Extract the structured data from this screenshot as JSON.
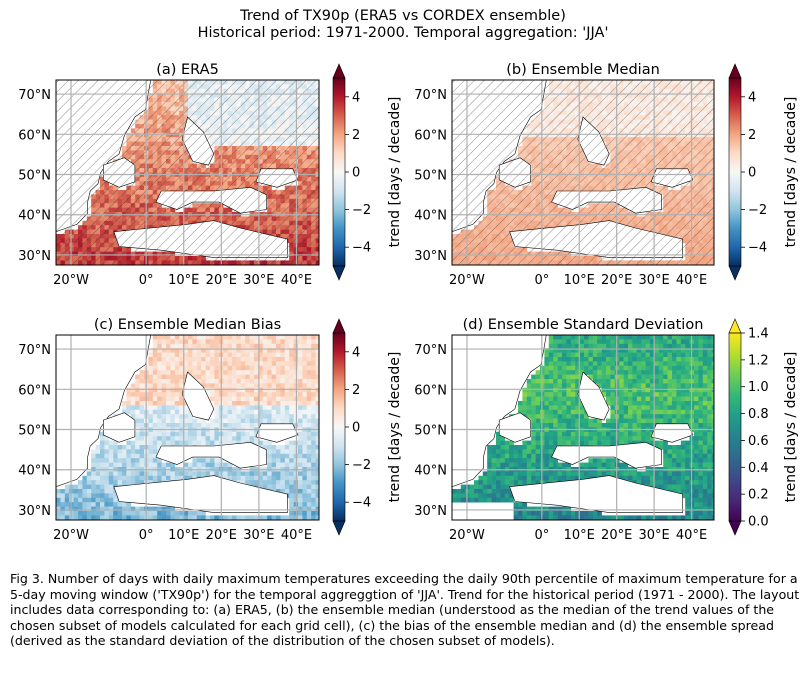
{
  "figure": {
    "title_line1": "Trend of TX90p (ERA5 vs CORDEX ensemble)",
    "title_line2": "Historical period: 1971-2000. Temporal aggregation: 'JJA'",
    "caption": "Fig 3. Number of days with daily maximum temperatures exceeding the daily 90th percentile of maximum temperature for a 5-day moving window ('TX90p') for the temporal aggreggtion of 'JJA'. Trend for the historical period (1971 - 2000). The layout includes data corresponding to: (a) ERA5, (b) the ensemble median (understood as the median of the trend values of the chosen subset of models calculated for each grid cell), (c) the bias of the ensemble median and (d) the ensemble spread (derived as the standard deviation of the distribution of the chosen subset of models)."
  },
  "colors": {
    "rdbu": [
      "#053061",
      "#2166ac",
      "#4393c3",
      "#92c5de",
      "#d1e5f0",
      "#f7f7f7",
      "#fddbc7",
      "#f4a582",
      "#d6604d",
      "#b2182b",
      "#67001f"
    ],
    "viridis": [
      "#440154",
      "#482878",
      "#3e4989",
      "#31688e",
      "#26828e",
      "#1f9e89",
      "#35b779",
      "#6ece58",
      "#b5de2b",
      "#fde725"
    ],
    "grid": "#b0b0b0",
    "coast": "#000000"
  },
  "chart_data": [
    {
      "type": "heatmap",
      "title": "(a) ERA5",
      "lat_ticks": [
        "70°N",
        "60°N",
        "50°N",
        "40°N",
        "30°N"
      ],
      "lon_ticks": [
        "20°W",
        "0°",
        "10°E",
        "20°E",
        "30°E",
        "40°E"
      ],
      "colorbar": {
        "label": "trend [days / decade]",
        "ticks": [
          "4",
          "2",
          "0",
          "−2",
          "−4"
        ],
        "range": [
          -5,
          5
        ],
        "cmap": "RdBu_r",
        "extend": "both"
      },
      "hatched": true
    },
    {
      "type": "heatmap",
      "title": "(b) Ensemble Median",
      "lat_ticks": [
        "70°N",
        "60°N",
        "50°N",
        "40°N",
        "30°N"
      ],
      "lon_ticks": [
        "20°W",
        "0°",
        "10°E",
        "20°E",
        "30°E",
        "40°E"
      ],
      "colorbar": {
        "label": "trend [days / decade]",
        "ticks": [
          "4",
          "2",
          "0",
          "−2",
          "−4"
        ],
        "range": [
          -5,
          5
        ],
        "cmap": "RdBu_r",
        "extend": "both"
      },
      "hatched": true
    },
    {
      "type": "heatmap",
      "title": "(c) Ensemble Median Bias",
      "lat_ticks": [
        "70°N",
        "60°N",
        "50°N",
        "40°N",
        "30°N"
      ],
      "lon_ticks": [
        "20°W",
        "0°",
        "10°E",
        "20°E",
        "30°E",
        "40°E"
      ],
      "colorbar": {
        "label": "trend [days / decade]",
        "ticks": [
          "4",
          "2",
          "0",
          "−2",
          "−4"
        ],
        "range": [
          -5,
          5
        ],
        "cmap": "RdBu_r",
        "extend": "both"
      },
      "hatched": false
    },
    {
      "type": "heatmap",
      "title": "(d) Ensemble Standard Deviation",
      "lat_ticks": [
        "70°N",
        "60°N",
        "50°N",
        "40°N",
        "30°N"
      ],
      "lon_ticks": [
        "20°W",
        "0°",
        "10°E",
        "20°E",
        "30°E",
        "40°E"
      ],
      "colorbar": {
        "label": "trend [days / decade]",
        "ticks": [
          "1.4",
          "1.2",
          "1.0",
          "0.8",
          "0.6",
          "0.4",
          "0.2",
          "0.0"
        ],
        "range": [
          0,
          1.4
        ],
        "cmap": "viridis",
        "extend": "min"
      },
      "hatched": false
    }
  ]
}
